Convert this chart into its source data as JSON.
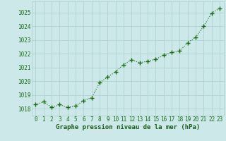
{
  "x": [
    0,
    1,
    2,
    3,
    4,
    5,
    6,
    7,
    8,
    9,
    10,
    11,
    12,
    13,
    14,
    15,
    16,
    17,
    18,
    19,
    20,
    21,
    22,
    23
  ],
  "y": [
    1018.3,
    1018.5,
    1018.1,
    1018.3,
    1018.1,
    1018.2,
    1018.6,
    1018.8,
    1019.9,
    1020.3,
    1020.7,
    1021.2,
    1021.55,
    1021.35,
    1021.45,
    1021.6,
    1021.9,
    1022.1,
    1022.2,
    1022.8,
    1023.2,
    1024.0,
    1024.95,
    1025.3
  ],
  "line_color": "#1a6b1a",
  "marker_color": "#1a6b1a",
  "bg_color": "#cce8e8",
  "grid_color": "#aacece",
  "xlabel": "Graphe pression niveau de la mer (hPa)",
  "xlabel_color": "#1a5c1a",
  "tick_color": "#1a6b1a",
  "ylim": [
    1017.5,
    1025.8
  ],
  "xlim": [
    -0.5,
    23.5
  ],
  "yticks": [
    1018,
    1019,
    1020,
    1021,
    1022,
    1023,
    1024,
    1025
  ],
  "xticks": [
    0,
    1,
    2,
    3,
    4,
    5,
    6,
    7,
    8,
    9,
    10,
    11,
    12,
    13,
    14,
    15,
    16,
    17,
    18,
    19,
    20,
    21,
    22,
    23
  ],
  "xtick_labels": [
    "0",
    "1",
    "2",
    "3",
    "4",
    "5",
    "6",
    "7",
    "8",
    "9",
    "10",
    "11",
    "12",
    "13",
    "14",
    "15",
    "16",
    "17",
    "18",
    "19",
    "20",
    "21",
    "22",
    "23"
  ],
  "xlabel_fontsize": 6.5,
  "tick_fontsize": 5.5
}
